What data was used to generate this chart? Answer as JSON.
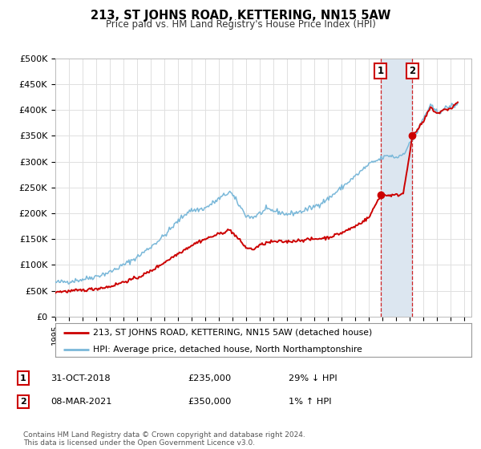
{
  "title": "213, ST JOHNS ROAD, KETTERING, NN15 5AW",
  "subtitle": "Price paid vs. HM Land Registry's House Price Index (HPI)",
  "ylim": [
    0,
    500000
  ],
  "yticks": [
    0,
    50000,
    100000,
    150000,
    200000,
    250000,
    300000,
    350000,
    400000,
    450000,
    500000
  ],
  "ytick_labels": [
    "£0",
    "£50K",
    "£100K",
    "£150K",
    "£200K",
    "£250K",
    "£300K",
    "£350K",
    "£400K",
    "£450K",
    "£500K"
  ],
  "xlim_start": 1995.0,
  "xlim_end": 2025.5,
  "hpi_color": "#7ab8d9",
  "price_color": "#cc0000",
  "marker_color": "#cc0000",
  "shade_color": "#dce6f0",
  "transaction1_date": 2018.83,
  "transaction1_price": 235000,
  "transaction2_date": 2021.18,
  "transaction2_price": 350000,
  "legend_line1": "213, ST JOHNS ROAD, KETTERING, NN15 5AW (detached house)",
  "legend_line2": "HPI: Average price, detached house, North Northamptonshire",
  "table_row1": [
    "1",
    "31-OCT-2018",
    "£235,000",
    "29% ↓ HPI"
  ],
  "table_row2": [
    "2",
    "08-MAR-2021",
    "£350,000",
    "1% ↑ HPI"
  ],
  "footnote": "Contains HM Land Registry data © Crown copyright and database right 2024.\nThis data is licensed under the Open Government Licence v3.0.",
  "background_color": "#ffffff",
  "plot_bg_color": "#ffffff",
  "grid_color": "#e0e0e0"
}
